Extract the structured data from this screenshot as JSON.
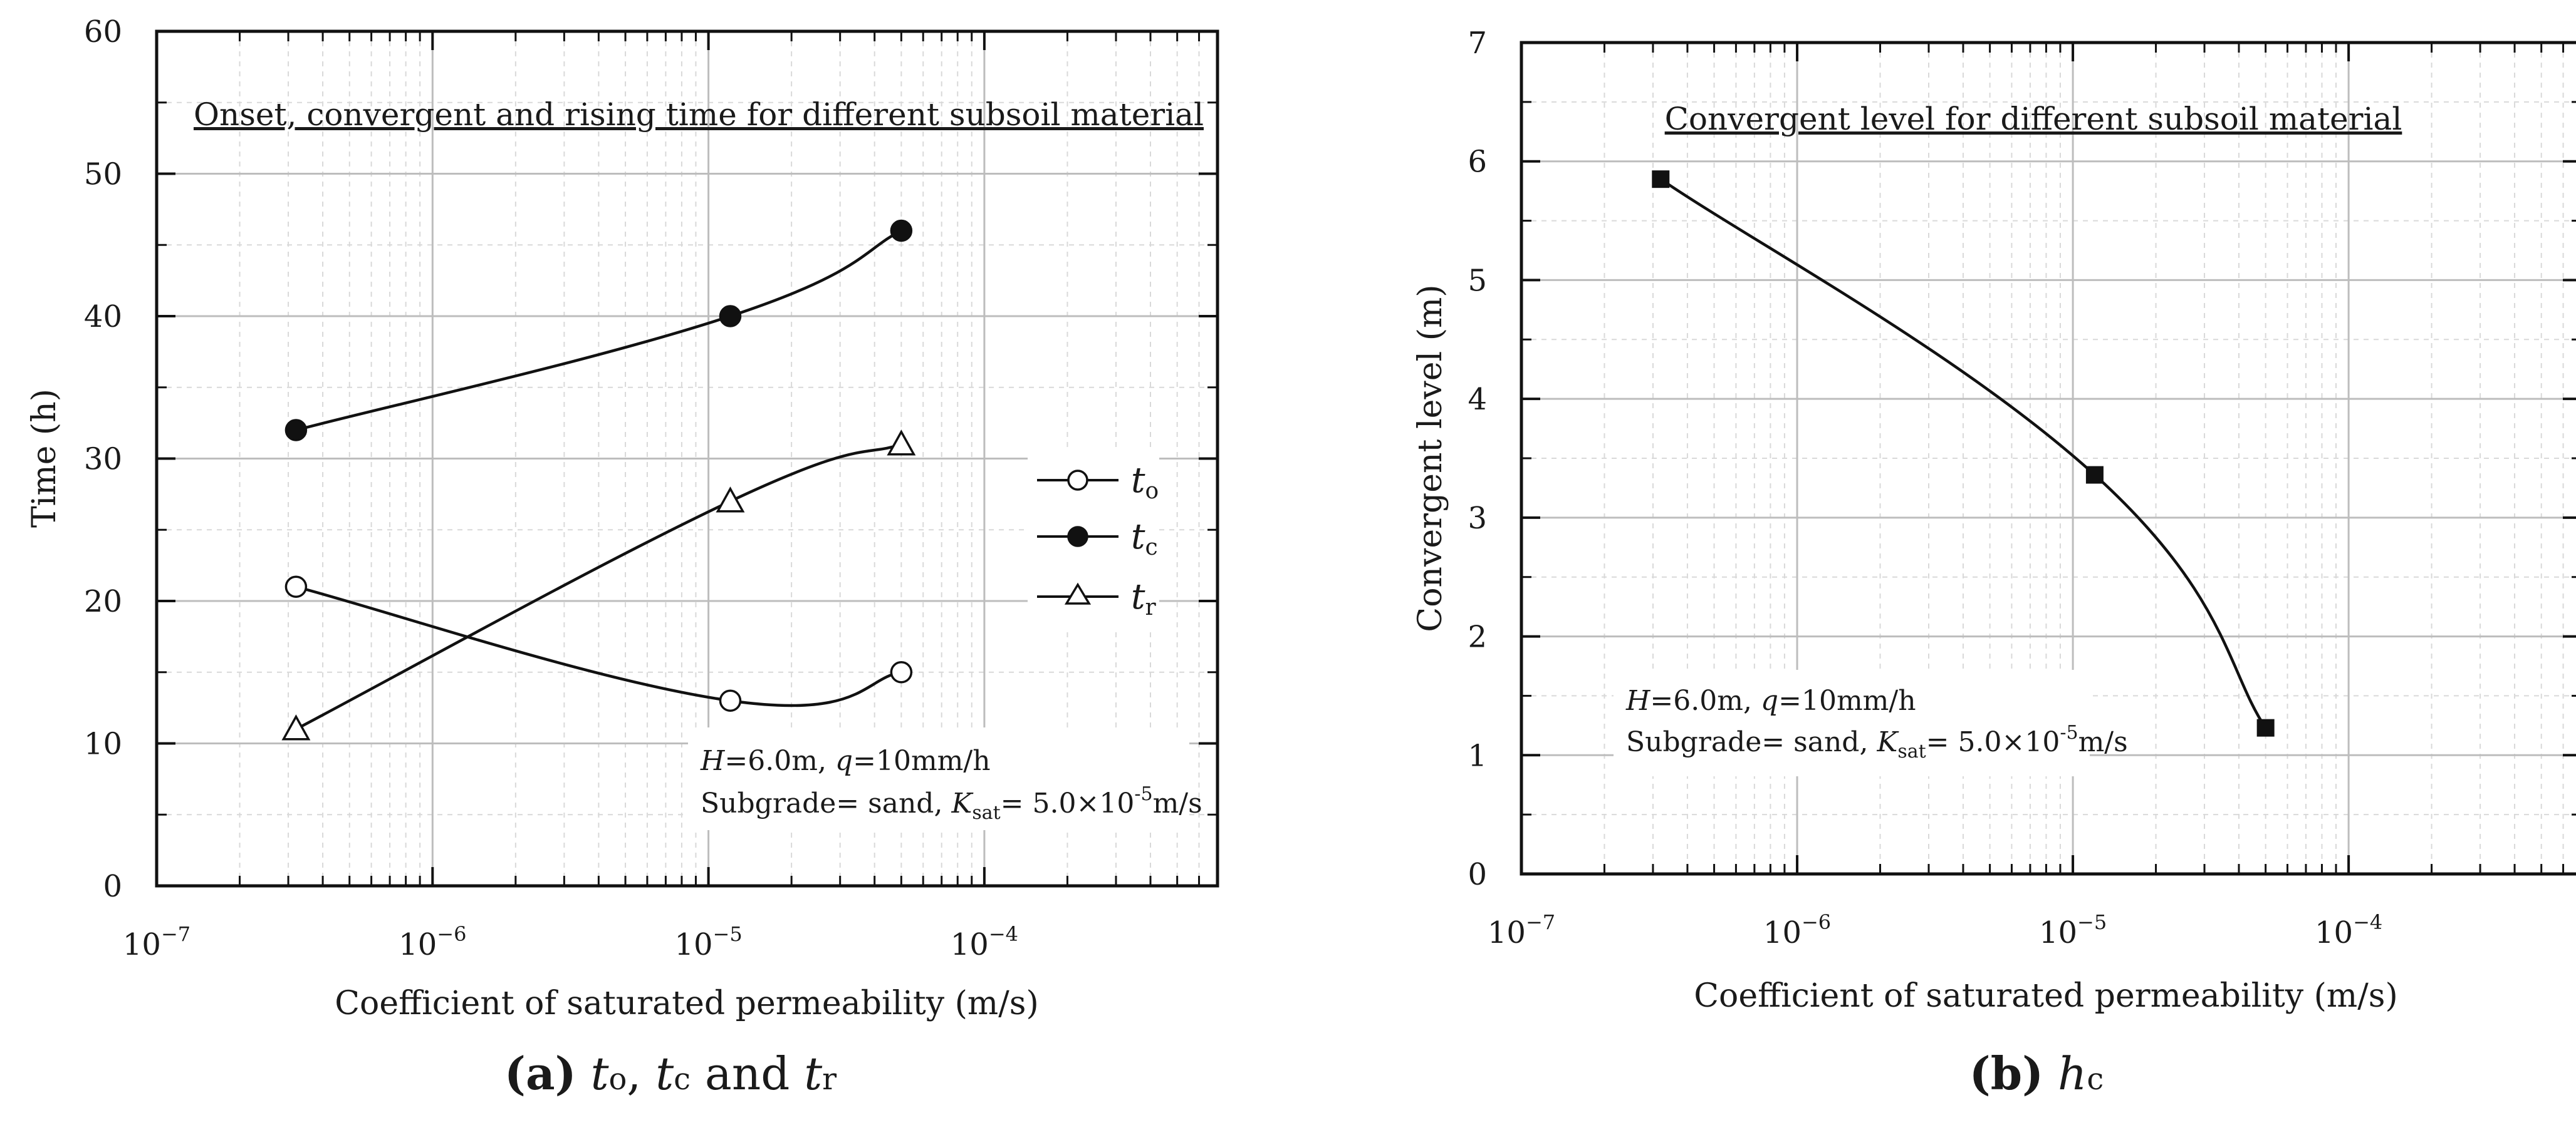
{
  "chart_data": [
    {
      "type": "line",
      "panel": "a",
      "title": "Onset, convergent and rising time for different subsoil material",
      "xlabel": "Coefficient of saturated permeability (m/s)",
      "ylabel": "Time (h)",
      "xscale": "log",
      "xlim": [
        1e-07,
        0.0007
      ],
      "ylim": [
        0,
        60
      ],
      "yticks": [
        0,
        10,
        20,
        30,
        40,
        50,
        60
      ],
      "xticks": [
        {
          "value": 1e-07,
          "base": "10",
          "exp": "−7"
        },
        {
          "value": 1e-06,
          "base": "10",
          "exp": "−6"
        },
        {
          "value": 1e-05,
          "base": "10",
          "exp": "−5"
        },
        {
          "value": 0.0001,
          "base": "10",
          "exp": "−4"
        }
      ],
      "x": [
        3.2e-07,
        1.2e-05,
        5e-05
      ],
      "series": [
        {
          "name": "to",
          "symbol": "t",
          "subscript": "o",
          "marker": "open-circle",
          "values": [
            21,
            13,
            15
          ]
        },
        {
          "name": "tc",
          "symbol": "t",
          "subscript": "c",
          "marker": "filled-circle",
          "values": [
            32,
            40,
            46
          ]
        },
        {
          "name": "tr",
          "symbol": "t",
          "subscript": "r",
          "marker": "open-triangle",
          "values": [
            11,
            27,
            31
          ]
        }
      ],
      "annotation": {
        "line1": {
          "H": "H",
          "H_val": "=6.0m, ",
          "q": "q",
          "q_val": "=10mm/h"
        },
        "line2": {
          "prefix": "Subgrade= sand,  ",
          "K": "K",
          "K_sub": "sat",
          "eq": "= 5.0×10",
          "exp": "-5",
          "unit": "m/s"
        }
      },
      "caption": {
        "letter": "(a)",
        "parts": [
          "t",
          "o",
          ", ",
          "t",
          "c",
          " and ",
          "t",
          "r"
        ]
      }
    },
    {
      "type": "line",
      "panel": "b",
      "title": "Convergent level for different subsoil material",
      "xlabel": "Coefficient of saturated permeability (m/s)",
      "ylabel": "Convergent level (m)",
      "xscale": "log",
      "xlim": [
        1e-07,
        0.0007
      ],
      "ylim": [
        0,
        7
      ],
      "yticks": [
        0,
        1,
        2,
        3,
        4,
        5,
        6,
        7
      ],
      "xticks": [
        {
          "value": 1e-07,
          "base": "10",
          "exp": "−7"
        },
        {
          "value": 1e-06,
          "base": "10",
          "exp": "−6"
        },
        {
          "value": 1e-05,
          "base": "10",
          "exp": "−5"
        },
        {
          "value": 0.0001,
          "base": "10",
          "exp": "−4"
        }
      ],
      "x": [
        3.2e-07,
        1.2e-05,
        5e-05
      ],
      "series": [
        {
          "name": "hc",
          "marker": "filled-square",
          "values": [
            5.85,
            3.36,
            1.23
          ]
        }
      ],
      "annotation": {
        "line1": {
          "H": "H",
          "H_val": "=6.0m, ",
          "q": "q",
          "q_val": "=10mm/h"
        },
        "line2": {
          "prefix": "Subgrade= sand,  ",
          "K": "K",
          "K_sub": "sat",
          "eq": "= 5.0×10",
          "exp": "-5",
          "unit": "m/s"
        }
      },
      "caption": {
        "letter": "(b)",
        "parts": [
          "h",
          "c"
        ]
      }
    }
  ]
}
